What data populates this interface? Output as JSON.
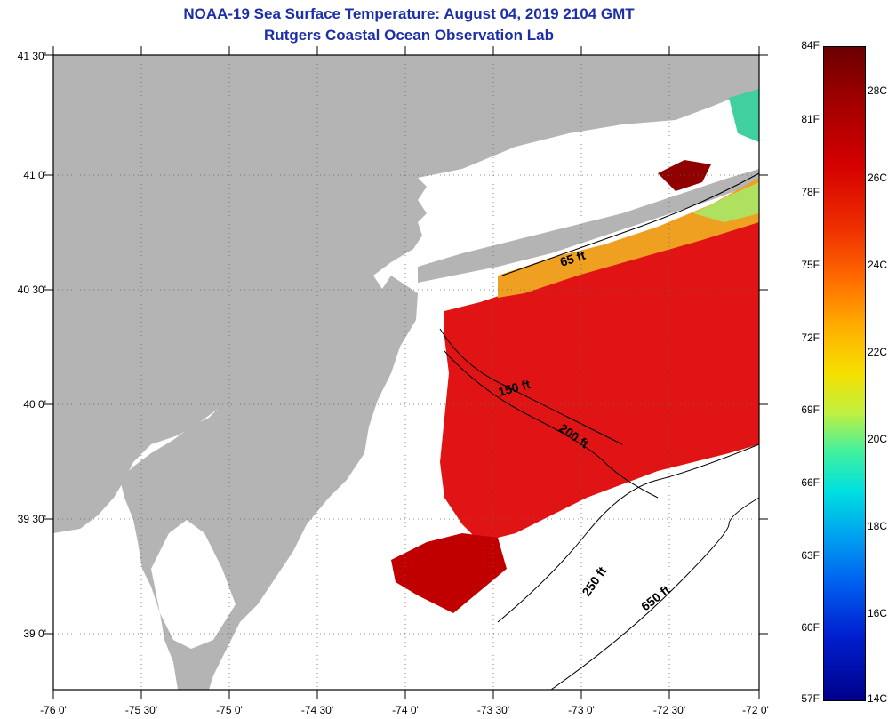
{
  "title": {
    "line1": "NOAA-19 Sea Surface Temperature:  August 04, 2019 2104 GMT",
    "line2": "Rutgers Coastal Ocean Observation Lab"
  },
  "latitude_labels": [
    "41 30'",
    "41 0'",
    "40 30'",
    "40 0'",
    "39 30'",
    "39 0'"
  ],
  "longitude_labels": [
    "-76 0'",
    "-75 30'",
    "-75 0'",
    "-74 30'",
    "-74 0'",
    "-73 30'",
    "-73 0'",
    "-72 30'",
    "-72 0'"
  ],
  "isobath_labels": [
    "65 ft",
    "150 ft",
    "200 ft",
    "250 ft",
    "650 ft"
  ],
  "colorbar": {
    "fahrenheit": [
      "84F",
      "81F",
      "78F",
      "75F",
      "72F",
      "69F",
      "66F",
      "63F",
      "60F",
      "57F"
    ],
    "celsius": [
      "28C",
      "26C",
      "24C",
      "22C",
      "20C",
      "18C",
      "16C",
      "14C"
    ]
  },
  "colors": {
    "land": "#b4b4b4",
    "no_data": "#ffffff",
    "warm": "#e01010",
    "hot": "#a00000",
    "title": "#1c2fa8"
  }
}
